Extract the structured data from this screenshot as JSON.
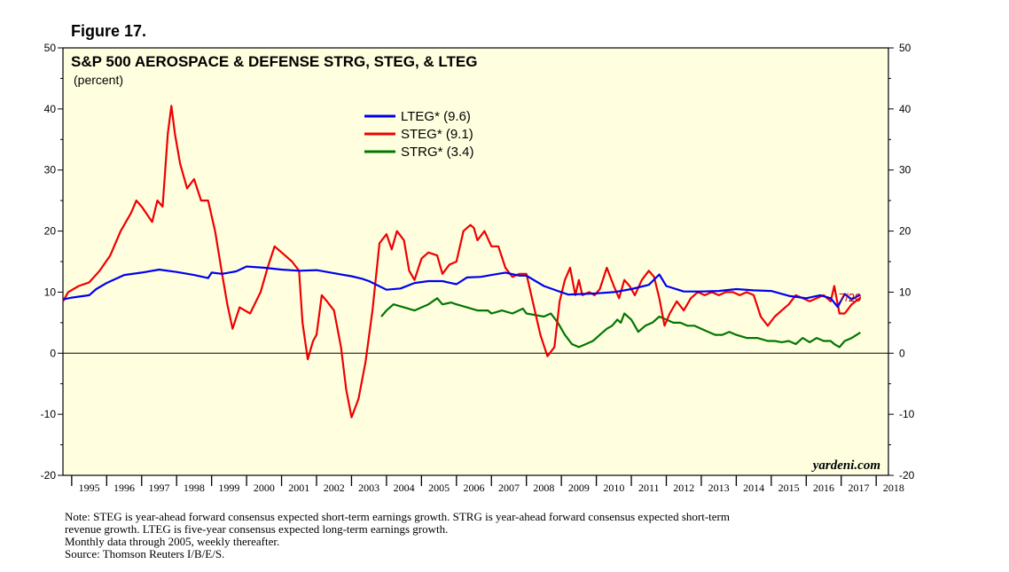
{
  "figure_label": "Figure 17.",
  "brand": "yardeni.com",
  "end_label": "7/20",
  "notes": [
    "Note: STEG is year-ahead forward consensus expected short-term earnings growth. STRG is year-ahead forward consensus expected short-term",
    "revenue growth. LTEG is five-year consensus expected long-term earnings growth.",
    "Monthly data through 2005, weekly thereafter.",
    "Source: Thomson Reuters I/B/E/S."
  ],
  "colors": {
    "plot_bg": "#ffffe0",
    "LTEG": "#0000ee",
    "STEG": "#ee0000",
    "STRG": "#007700"
  },
  "chart_data": {
    "type": "line",
    "title": "S&P 500 AEROSPACE & DEFENSE STRG, STEG, & LTEG",
    "subtitle": "(percent)",
    "xlabel": "",
    "ylabel": "",
    "ylim": [
      -20,
      50
    ],
    "xlim": [
      1994.75,
      2018.35
    ],
    "y_ticks": [
      -20,
      -10,
      0,
      10,
      20,
      30,
      40,
      50
    ],
    "x_tick_labels": [
      "1995",
      "1996",
      "1997",
      "1998",
      "1999",
      "2000",
      "2001",
      "2002",
      "2003",
      "2004",
      "2005",
      "2006",
      "2007",
      "2008",
      "2009",
      "2010",
      "2011",
      "2012",
      "2013",
      "2014",
      "2015",
      "2016",
      "2017",
      "2018"
    ],
    "legend_position": "top-center",
    "series": [
      {
        "name": "LTEG",
        "legend_label": "LTEG* (9.6)",
        "x": [
          1994.75,
          1995.0,
          1995.5,
          1995.7,
          1996.0,
          1996.5,
          1997.0,
          1997.5,
          1998.0,
          1998.5,
          1998.9,
          1999.0,
          1999.3,
          1999.7,
          2000.0,
          2000.5,
          2001.0,
          2001.5,
          2002.0,
          2002.5,
          2003.0,
          2003.3,
          2003.5,
          2004.0,
          2004.4,
          2004.8,
          2005.2,
          2005.6,
          2006.0,
          2006.3,
          2006.7,
          2007.0,
          2007.4,
          2007.8,
          2008.0,
          2008.5,
          2008.9,
          2009.2,
          2009.6,
          2010.0,
          2010.5,
          2011.0,
          2011.5,
          2011.8,
          2012.0,
          2012.5,
          2013.0,
          2013.5,
          2014.0,
          2014.5,
          2015.0,
          2015.5,
          2016.0,
          2016.4,
          2016.7,
          2016.9,
          2017.1,
          2017.3,
          2017.55
        ],
        "values": [
          8.8,
          9.1,
          9.5,
          10.5,
          11.5,
          12.8,
          13.2,
          13.7,
          13.3,
          12.8,
          12.3,
          13.2,
          13.0,
          13.4,
          14.2,
          14.0,
          13.7,
          13.5,
          13.6,
          13.1,
          12.6,
          12.2,
          11.8,
          10.4,
          10.6,
          11.5,
          11.8,
          11.8,
          11.3,
          12.4,
          12.5,
          12.8,
          13.2,
          12.7,
          12.7,
          11.0,
          10.2,
          9.6,
          9.7,
          9.8,
          10.0,
          10.5,
          11.2,
          12.9,
          11.0,
          10.1,
          10.1,
          10.2,
          10.5,
          10.3,
          10.2,
          9.4,
          9.0,
          9.5,
          9.0,
          7.6,
          9.7,
          8.8,
          9.6
        ]
      },
      {
        "name": "STEG",
        "legend_label": "STEG* (9.1)",
        "x": [
          1994.75,
          1994.9,
          1995.2,
          1995.5,
          1995.8,
          1996.1,
          1996.4,
          1996.7,
          1996.85,
          1997.0,
          1997.3,
          1997.45,
          1997.6,
          1997.75,
          1997.85,
          1997.95,
          1998.1,
          1998.3,
          1998.5,
          1998.7,
          1998.9,
          1999.1,
          1999.3,
          1999.45,
          1999.6,
          1999.8,
          2000.1,
          2000.4,
          2000.6,
          2000.8,
          2001.1,
          2001.3,
          2001.5,
          2001.6,
          2001.75,
          2001.9,
          2002.0,
          2002.15,
          2002.3,
          2002.5,
          2002.7,
          2002.85,
          2003.0,
          2003.2,
          2003.4,
          2003.6,
          2003.8,
          2004.0,
          2004.15,
          2004.3,
          2004.5,
          2004.65,
          2004.8,
          2005.0,
          2005.2,
          2005.45,
          2005.6,
          2005.8,
          2006.0,
          2006.2,
          2006.4,
          2006.5,
          2006.6,
          2006.8,
          2007.0,
          2007.2,
          2007.4,
          2007.6,
          2007.8,
          2008.0,
          2008.2,
          2008.4,
          2008.6,
          2008.8,
          2008.95,
          2009.1,
          2009.25,
          2009.4,
          2009.5,
          2009.6,
          2009.8,
          2009.95,
          2010.1,
          2010.3,
          2010.5,
          2010.65,
          2010.8,
          2010.95,
          2011.1,
          2011.3,
          2011.5,
          2011.65,
          2011.8,
          2011.95,
          2012.1,
          2012.3,
          2012.5,
          2012.7,
          2012.9,
          2013.1,
          2013.3,
          2013.5,
          2013.7,
          2013.9,
          2014.1,
          2014.3,
          2014.5,
          2014.7,
          2014.9,
          2015.1,
          2015.3,
          2015.5,
          2015.7,
          2015.9,
          2016.1,
          2016.3,
          2016.5,
          2016.7,
          2016.8,
          2016.95,
          2017.1,
          2017.3,
          2017.55
        ],
        "values": [
          8.5,
          10.0,
          11.0,
          11.6,
          13.5,
          16.0,
          20.0,
          23.0,
          25.0,
          24.0,
          21.5,
          25.0,
          24.0,
          36.0,
          40.5,
          36.0,
          31.0,
          27.0,
          28.5,
          25.0,
          25.0,
          20.0,
          13.0,
          8.0,
          4.0,
          7.5,
          6.5,
          10.0,
          14.0,
          17.5,
          16.0,
          15.0,
          13.5,
          5.0,
          -1.0,
          2.0,
          3.0,
          9.5,
          8.5,
          7.0,
          1.0,
          -6.0,
          -10.5,
          -7.5,
          -1.5,
          7.0,
          18.0,
          19.5,
          17.0,
          20.0,
          18.5,
          13.5,
          12.0,
          15.5,
          16.5,
          16.0,
          13.0,
          14.5,
          15.0,
          20.0,
          21.0,
          20.5,
          18.5,
          20.0,
          17.5,
          17.5,
          14.0,
          12.5,
          13.0,
          13.0,
          8.0,
          3.0,
          -0.5,
          1.0,
          8.5,
          12.0,
          14.0,
          9.5,
          12.0,
          9.5,
          10.0,
          9.5,
          10.5,
          14.0,
          11.0,
          9.0,
          12.0,
          11.0,
          9.5,
          12.0,
          13.5,
          12.5,
          9.0,
          4.5,
          6.5,
          8.5,
          7.0,
          9.0,
          10.0,
          9.5,
          10.0,
          9.5,
          10.0,
          10.0,
          9.5,
          10.0,
          9.5,
          6.0,
          4.5,
          6.0,
          7.0,
          8.0,
          9.5,
          9.0,
          8.5,
          9.0,
          9.5,
          8.5,
          11.0,
          6.5,
          6.5,
          8.0,
          9.1
        ]
      },
      {
        "name": "STRG",
        "legend_label": "STRG* (3.4)",
        "x": [
          2003.85,
          2004.0,
          2004.2,
          2004.5,
          2004.8,
          2005.0,
          2005.2,
          2005.45,
          2005.6,
          2005.85,
          2006.0,
          2006.3,
          2006.6,
          2006.9,
          2007.0,
          2007.3,
          2007.6,
          2007.9,
          2008.0,
          2008.3,
          2008.5,
          2008.7,
          2008.9,
          2009.1,
          2009.3,
          2009.5,
          2009.7,
          2009.9,
          2010.1,
          2010.3,
          2010.45,
          2010.6,
          2010.7,
          2010.8,
          2011.0,
          2011.2,
          2011.4,
          2011.6,
          2011.8,
          2012.0,
          2012.2,
          2012.4,
          2012.6,
          2012.8,
          2013.0,
          2013.2,
          2013.4,
          2013.6,
          2013.8,
          2014.0,
          2014.3,
          2014.6,
          2014.9,
          2015.1,
          2015.3,
          2015.5,
          2015.7,
          2015.9,
          2016.1,
          2016.3,
          2016.5,
          2016.7,
          2016.8,
          2016.95,
          2017.1,
          2017.3,
          2017.55
        ],
        "values": [
          6.0,
          7.0,
          8.0,
          7.5,
          7.0,
          7.5,
          8.0,
          9.0,
          8.0,
          8.3,
          8.0,
          7.5,
          7.0,
          7.0,
          6.5,
          7.0,
          6.5,
          7.3,
          6.5,
          6.2,
          6.0,
          6.5,
          5.0,
          3.0,
          1.5,
          1.0,
          1.5,
          2.0,
          3.0,
          4.0,
          4.5,
          5.5,
          5.0,
          6.5,
          5.5,
          3.5,
          4.5,
          5.0,
          6.0,
          5.5,
          5.0,
          5.0,
          4.5,
          4.5,
          4.0,
          3.5,
          3.0,
          3.0,
          3.5,
          3.0,
          2.5,
          2.5,
          2.0,
          2.0,
          1.8,
          2.0,
          1.5,
          2.5,
          1.8,
          2.5,
          2.0,
          2.0,
          1.5,
          1.0,
          2.0,
          2.5,
          3.4
        ]
      }
    ]
  }
}
